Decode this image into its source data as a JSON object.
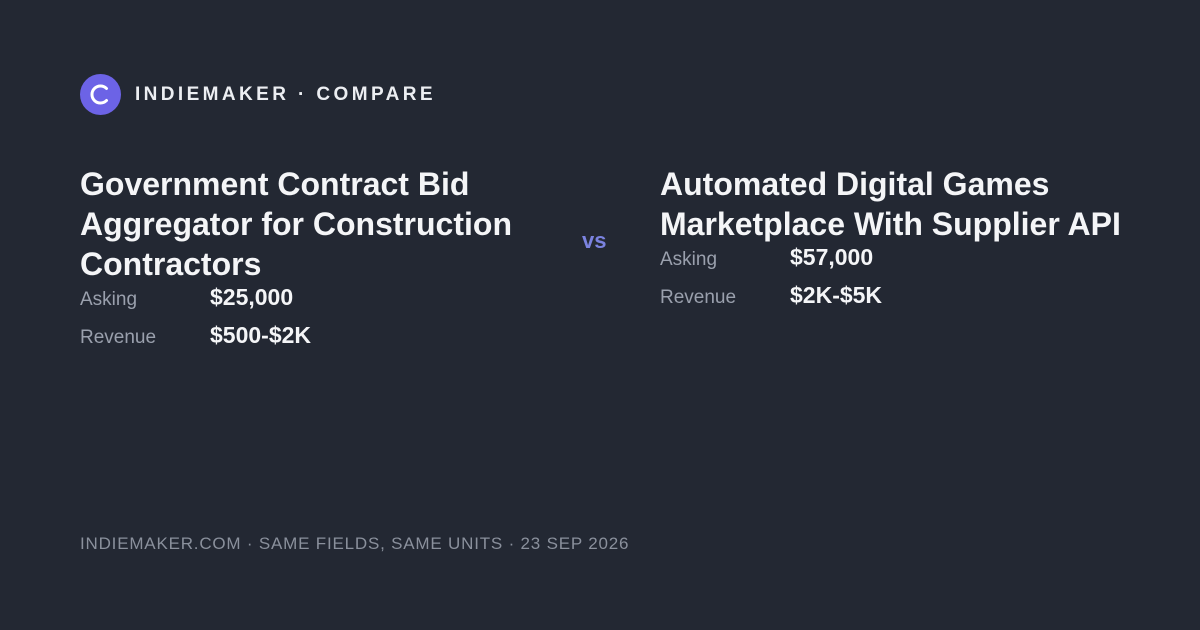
{
  "header": {
    "brand": "INDIEMAKER · COMPARE"
  },
  "separator": "vs",
  "listings": [
    {
      "title": "Government Contract Bid Aggregator for Construction Contractors",
      "fields": [
        {
          "label": "Asking",
          "value": "$25,000"
        },
        {
          "label": "Revenue",
          "value": "$500-$2K"
        }
      ]
    },
    {
      "title": "Automated Digital Games Marketplace With Supplier API",
      "fields": [
        {
          "label": "Asking",
          "value": "$57,000"
        },
        {
          "label": "Revenue",
          "value": "$2K-$5K"
        }
      ]
    }
  ],
  "footer": "INDIEMAKER.COM · SAME FIELDS, SAME UNITS · 23 SEP 2026"
}
